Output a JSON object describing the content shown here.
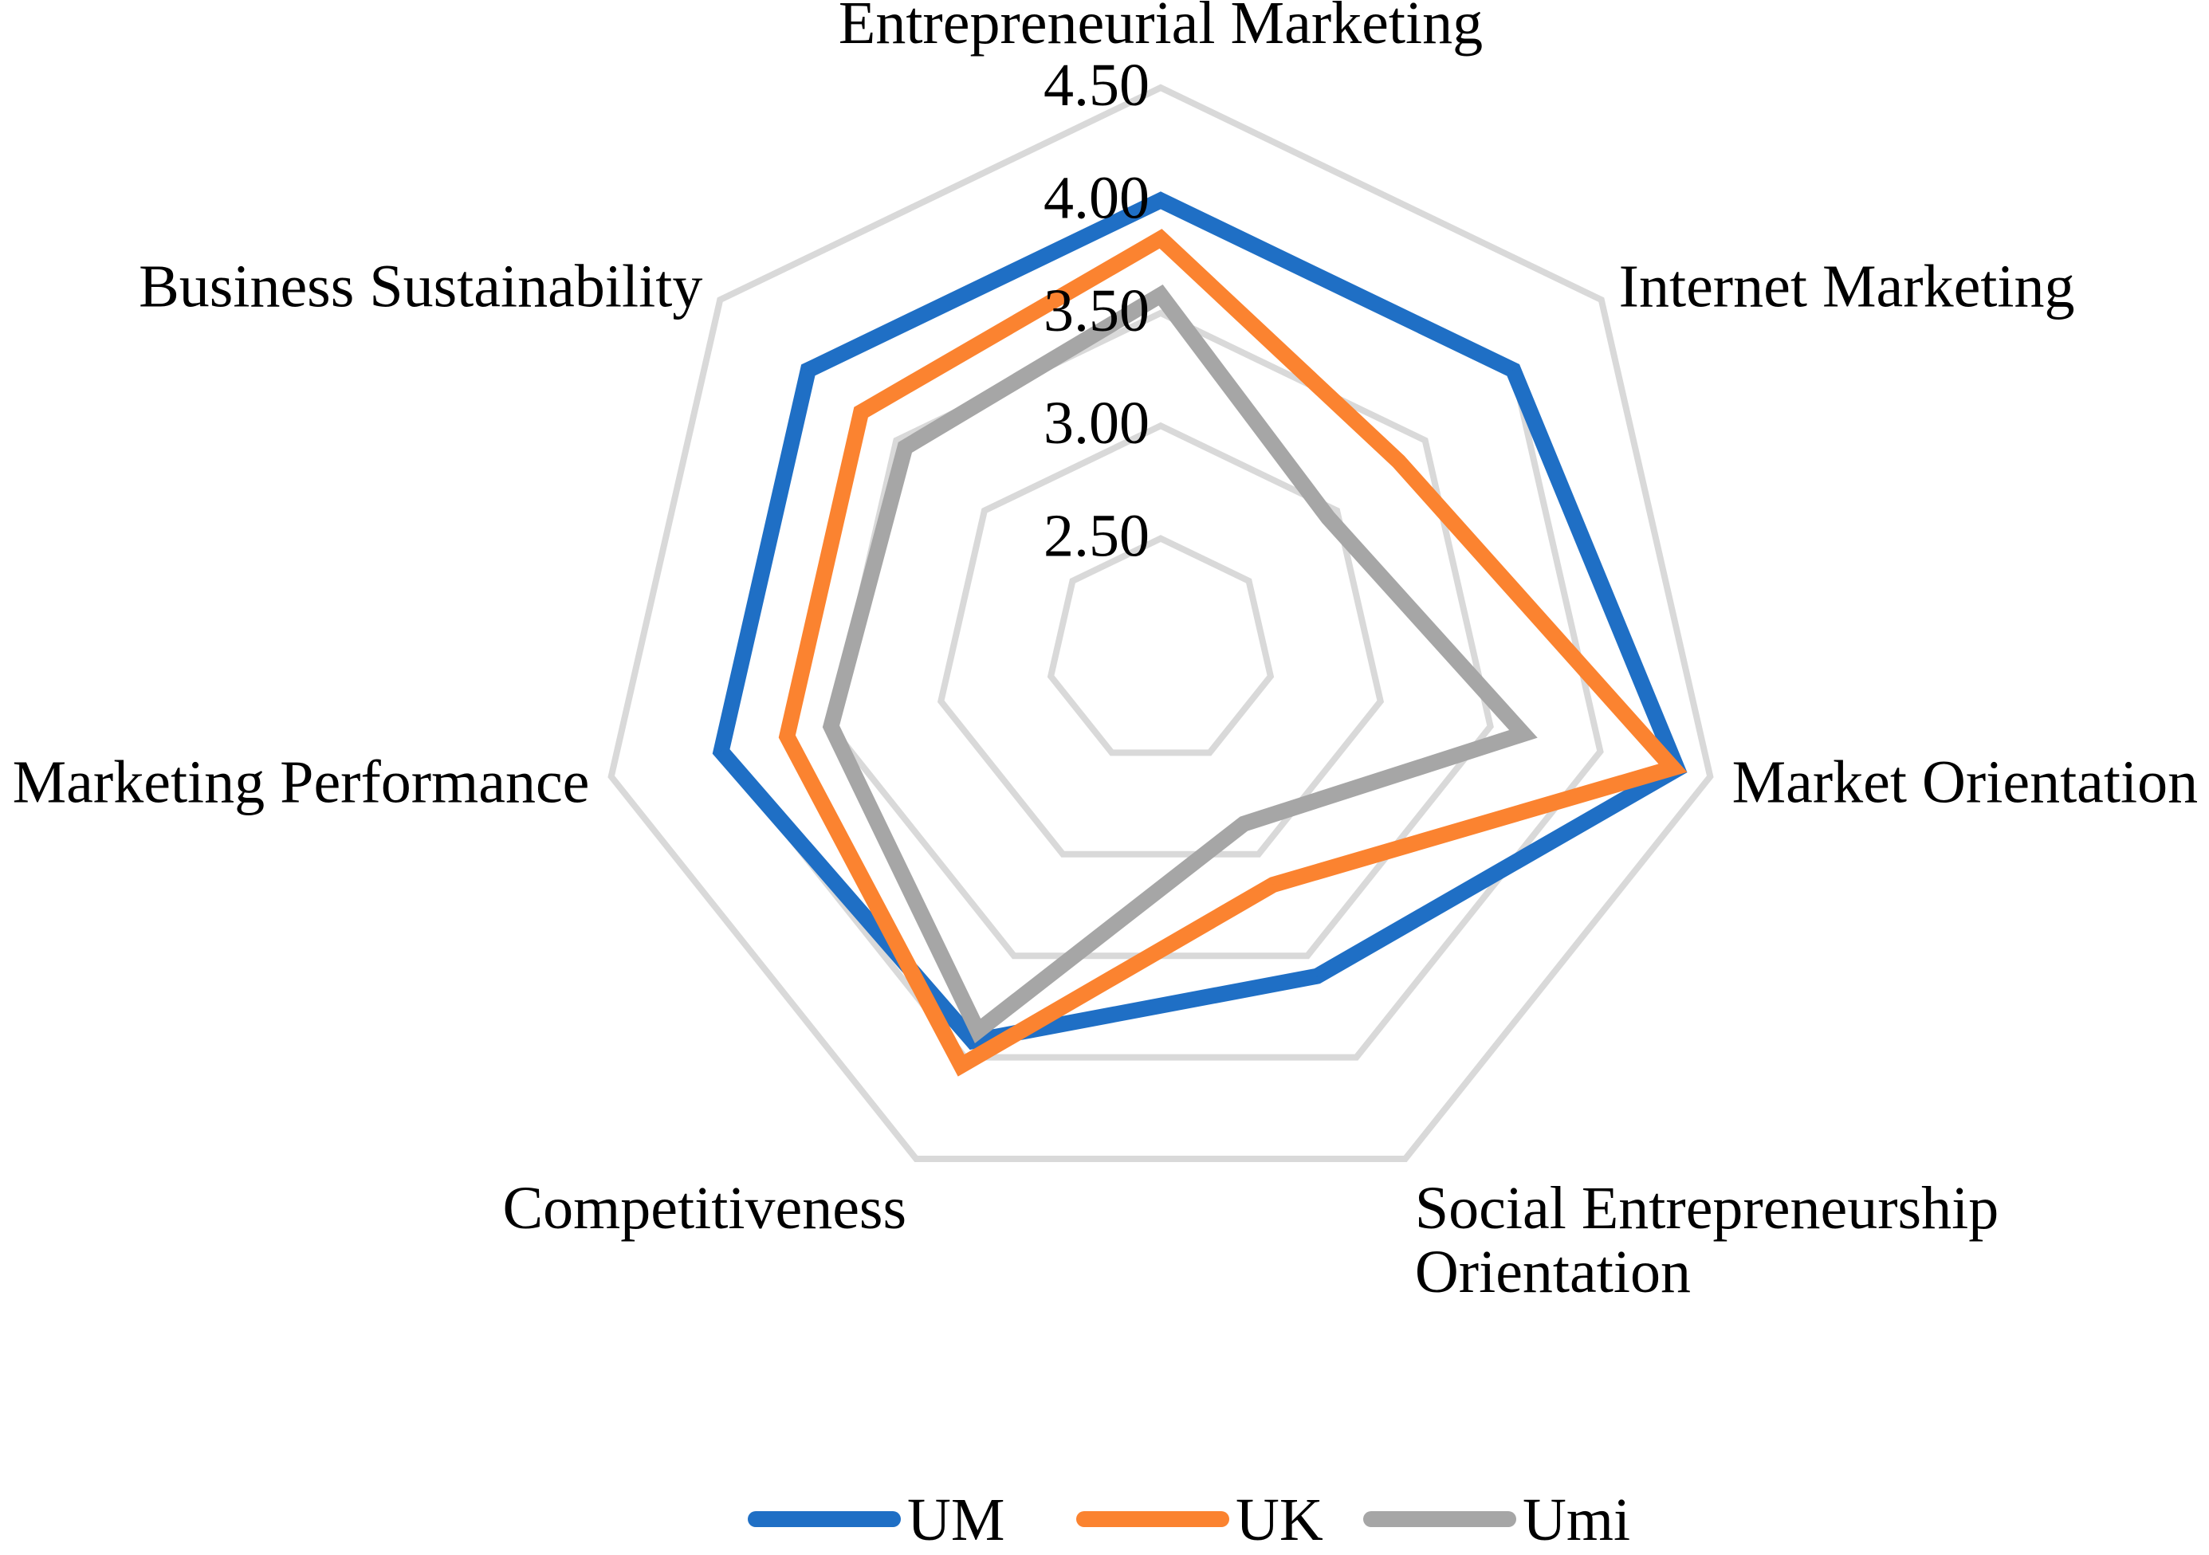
{
  "chart_data": {
    "type": "radar",
    "title": "",
    "categories": [
      [
        "Entrepreneurial Marketing"
      ],
      [
        "Internet Marketing"
      ],
      [
        "Market Orientation"
      ],
      [
        "Social Entrepreneurship",
        "Orientation"
      ],
      [
        "Competitiveness"
      ],
      [
        "Marketing Performance"
      ],
      [
        "Business Sustainability"
      ]
    ],
    "rlim": [
      2.0,
      4.5
    ],
    "ticks": [
      2.5,
      3.0,
      3.5,
      4.0,
      4.5
    ],
    "tick_labels": [
      "2.50",
      "3.00",
      "3.50",
      "4.00",
      "4.50"
    ],
    "grid": true,
    "legend_position": "bottom",
    "series": [
      {
        "name": "UM",
        "color": "#1f6fc5",
        "values": [
          4.0,
          4.0,
          4.35,
          3.6,
          3.92,
          4.0,
          4.0
        ]
      },
      {
        "name": "UK",
        "color": "#fb8330",
        "values": [
          3.83,
          3.35,
          4.33,
          3.15,
          4.04,
          3.7,
          3.7
        ]
      },
      {
        "name": "Umi",
        "color": "#a6a6a6",
        "values": [
          3.58,
          2.95,
          3.65,
          2.85,
          3.87,
          3.5,
          3.45
        ]
      }
    ]
  }
}
